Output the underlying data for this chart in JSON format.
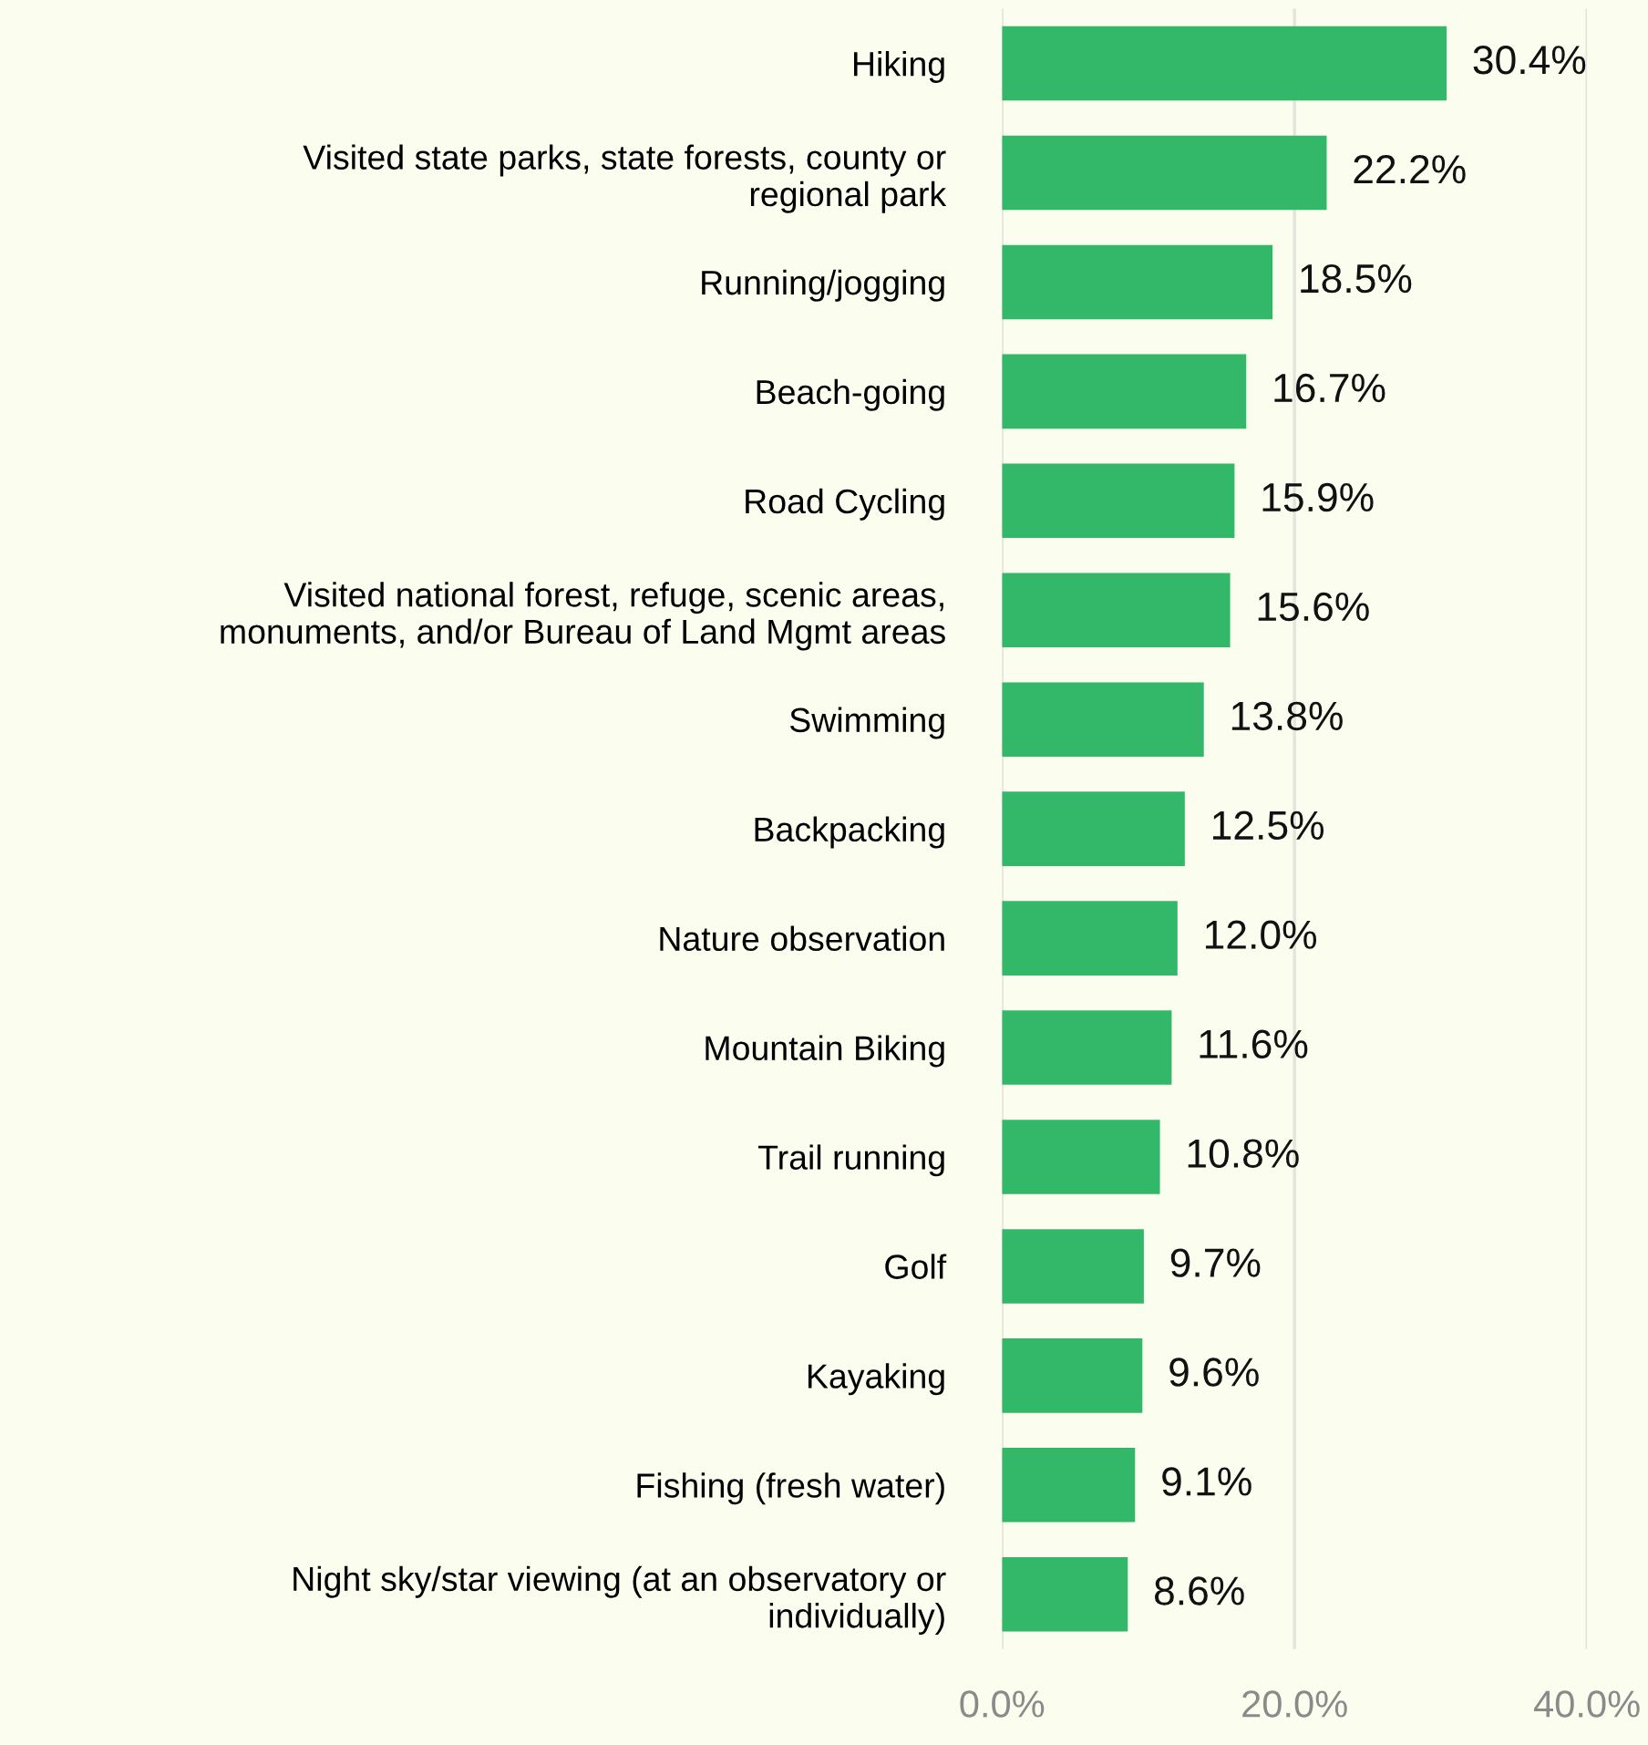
{
  "chart_data": {
    "type": "bar",
    "orientation": "horizontal",
    "categories": [
      "Hiking",
      "Visited state parks, state forests, county or\nregional park",
      "Running/jogging",
      "Beach-going",
      "Road Cycling",
      "Visited national forest, refuge, scenic areas,\nmonuments, and/or Bureau of Land Mgmt areas",
      "Swimming",
      "Backpacking",
      "Nature observation",
      "Mountain Biking",
      "Trail running",
      "Golf",
      "Kayaking",
      "Fishing (fresh water)",
      "Night sky/star viewing (at an observatory or\nindividually)"
    ],
    "values": [
      30.4,
      22.2,
      18.5,
      16.7,
      15.9,
      15.6,
      13.8,
      12.5,
      12.0,
      11.6,
      10.8,
      9.7,
      9.6,
      9.1,
      8.6
    ],
    "value_labels": [
      "30.4%",
      "22.2%",
      "18.5%",
      "16.7%",
      "15.9%",
      "15.6%",
      "13.8%",
      "12.5%",
      "12.0%",
      "11.6%",
      "10.8%",
      "9.7%",
      "9.6%",
      "9.1%",
      "8.6%"
    ],
    "color": "#33b86a",
    "xlim": [
      0,
      40
    ],
    "xticks": [
      {
        "value": 0,
        "label": "0.0%"
      },
      {
        "value": 20,
        "label": "20.0%"
      },
      {
        "value": 40,
        "label": "40.0%"
      }
    ],
    "grid": "x",
    "legend": false
  }
}
